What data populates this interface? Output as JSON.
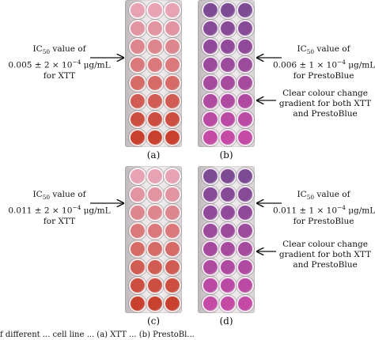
{
  "panels": [
    {
      "label": "(a)",
      "assay": "XTT"
    },
    {
      "label": "(b)",
      "assay": "PrestoBlue"
    },
    {
      "label": "(c)",
      "assay": "XTT"
    },
    {
      "label": "(d)",
      "assay": "PrestoBlue"
    }
  ],
  "annotations": {
    "a": {
      "line1": "IC",
      "sub": "50",
      "line1_rest": " value of",
      "line2": "0.005 ± 2 × 10",
      "sup": "−4",
      "line2_rest": " μg/mL",
      "line3": "for XTT"
    },
    "b": {
      "line1": "IC",
      "sub": "50",
      "line1_rest": " value of",
      "line2": "0.006 ± 1 × 10",
      "sup": "−4",
      "line2_rest": " μg/mL",
      "line3": "for PrestoBlue"
    },
    "b_gradient": {
      "line1": "Clear colour change",
      "line2": "gradient for both XTT",
      "line3": "and PrestoBlue"
    },
    "c": {
      "line1": "IC",
      "sub": "50",
      "line1_rest": " value of",
      "line2": "0.011 ± 2 × 10",
      "sup": "−4",
      "line2_rest": " μg/mL",
      "line3": "for XTT"
    },
    "d": {
      "line1": "IC",
      "sub": "50",
      "line1_rest": " value of",
      "line2": "0.011 ± 1 × 10",
      "sup": "−4",
      "line2_rest": " μg/mL",
      "line3": "for PrestoBlue"
    },
    "d_gradient": {
      "line1": "Clear colour change",
      "line2": "gradient for both XTT",
      "line3": "and PrestoBlue"
    }
  },
  "caption": "f different ... cell line ... (a) XTT ... (b) PrestoBl...",
  "colors": {
    "xtt_top": "#e7a2b4",
    "xtt_bottom": "#c8402e",
    "presto_top": "#7d4a94",
    "presto_bottom": "#c44aa6"
  }
}
